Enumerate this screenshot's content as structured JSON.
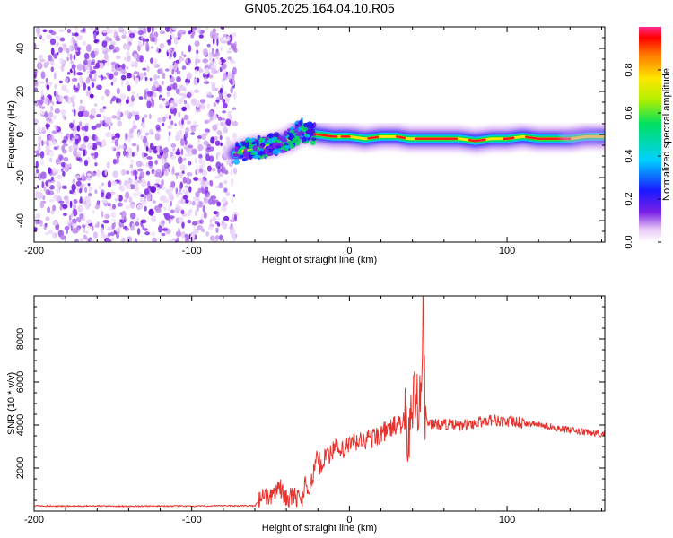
{
  "title": "GN05.2025.164.04.10.R05",
  "chart_data": [
    {
      "type": "heatmap",
      "title": "GN05.2025.164.04.10.R05",
      "xlabel": "Height of straight line (km)",
      "ylabel": "Frequency (Hz)",
      "xlim": [
        -200,
        162
      ],
      "ylim": [
        -50,
        50
      ],
      "x_ticks": [
        -200,
        -100,
        0,
        100
      ],
      "y_ticks": [
        -40,
        -20,
        0,
        20,
        40
      ],
      "noise_region_x": [
        -200,
        -72
      ],
      "signal_track": {
        "x": [
          -72,
          -65,
          -60,
          -55,
          -50,
          -45,
          -40,
          -35,
          -30,
          -28,
          -20,
          -10,
          0,
          10,
          20,
          30,
          38,
          50,
          60,
          70,
          80,
          90,
          100,
          110,
          120,
          130,
          140,
          150,
          162
        ],
        "y": [
          -9,
          -7,
          -6,
          -6,
          -5,
          -4,
          -3,
          -1,
          3,
          1,
          0,
          -1,
          -1,
          -2,
          -1,
          -1,
          -2,
          -2,
          -2,
          -2,
          -3,
          -2,
          -2,
          -1,
          -2,
          -2,
          -2,
          -1,
          -1
        ]
      },
      "colorbar": {
        "label": "Normalized spectral amplitude",
        "range": [
          0,
          1
        ],
        "ticks": [
          "0.0",
          "0.2",
          "0.4",
          "0.6",
          "0.8"
        ]
      },
      "grid": false
    },
    {
      "type": "line",
      "xlabel": "Height of straight line (km)",
      "ylabel": "SNR (10 * v/v)",
      "xlim": [
        -200,
        162
      ],
      "ylim": [
        0,
        10000
      ],
      "x_ticks": [
        -200,
        -100,
        0,
        100
      ],
      "y_ticks": [
        2000,
        4000,
        6000,
        8000
      ],
      "color": "#e8322d",
      "series": [
        {
          "x": [
            -200,
            -180,
            -160,
            -140,
            -120,
            -100,
            -80,
            -60,
            -55,
            -50,
            -45,
            -40,
            -35,
            -30,
            -28,
            -25,
            -22,
            -20,
            -18,
            -15,
            -12,
            -10,
            -5,
            0,
            5,
            10,
            15,
            20,
            25,
            30,
            35,
            38,
            40,
            42,
            44,
            45,
            46,
            47,
            48,
            50,
            55,
            60,
            70,
            80,
            90,
            100,
            110,
            120,
            130,
            140,
            150,
            162
          ],
          "y": [
            250,
            230,
            240,
            230,
            240,
            230,
            250,
            250,
            800,
            600,
            1200,
            600,
            700,
            500,
            1500,
            900,
            2100,
            2500,
            2000,
            2800,
            2600,
            3000,
            2700,
            3100,
            3200,
            3300,
            3400,
            3600,
            3800,
            4000,
            4100,
            3500,
            4800,
            5300,
            5500,
            6200,
            6000,
            9900,
            4000,
            4100,
            4000,
            4050,
            3950,
            4100,
            4250,
            4150,
            4100,
            4000,
            3900,
            3750,
            3650,
            3600
          ]
        }
      ],
      "grid": false
    }
  ]
}
